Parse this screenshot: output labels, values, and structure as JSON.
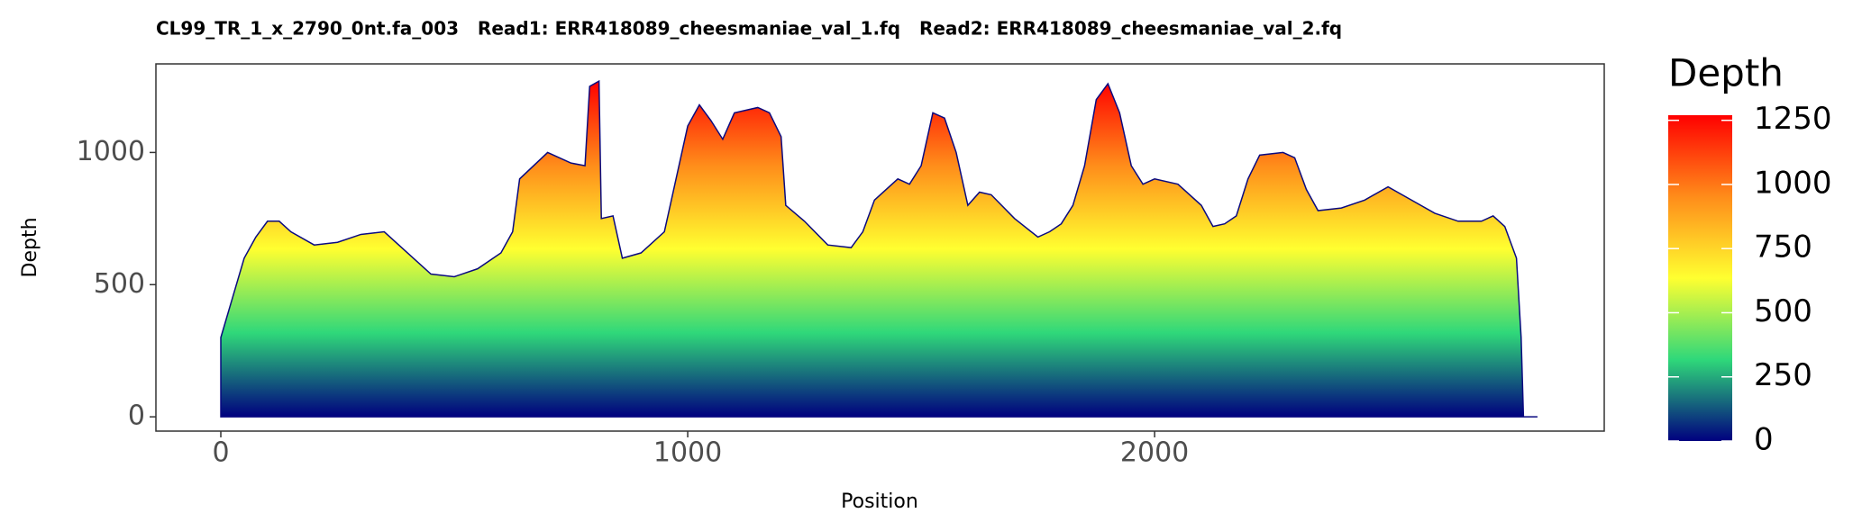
{
  "chart_data": {
    "type": "area",
    "title": "CL99_TR_1_x_2790_0nt.fa_003   Read1: ERR418089_cheesmaniae_val_1.fq   Read2: ERR418089_cheesmaniae_val_2.fq",
    "x_label": "Position",
    "y_label": "Depth",
    "x": [
      0,
      25,
      50,
      75,
      100,
      125,
      150,
      200,
      250,
      300,
      350,
      400,
      450,
      500,
      550,
      600,
      625,
      640,
      700,
      750,
      780,
      790,
      810,
      815,
      840,
      860,
      900,
      950,
      975,
      1000,
      1025,
      1050,
      1075,
      1100,
      1150,
      1175,
      1200,
      1210,
      1250,
      1300,
      1350,
      1375,
      1400,
      1450,
      1475,
      1500,
      1525,
      1550,
      1575,
      1600,
      1625,
      1650,
      1700,
      1750,
      1775,
      1800,
      1825,
      1850,
      1875,
      1900,
      1925,
      1950,
      1975,
      2000,
      2050,
      2100,
      2125,
      2150,
      2175,
      2200,
      2225,
      2275,
      2300,
      2325,
      2350,
      2400,
      2450,
      2500,
      2550,
      2600,
      2650,
      2700,
      2725,
      2750,
      2775,
      2785,
      2790,
      2820
    ],
    "values": [
      300,
      450,
      600,
      680,
      740,
      740,
      700,
      650,
      660,
      690,
      700,
      620,
      540,
      530,
      560,
      620,
      700,
      900,
      1000,
      960,
      950,
      1250,
      1270,
      750,
      760,
      600,
      620,
      700,
      900,
      1100,
      1180,
      1120,
      1050,
      1150,
      1170,
      1150,
      1060,
      800,
      740,
      650,
      640,
      700,
      820,
      900,
      880,
      950,
      1150,
      1130,
      1000,
      800,
      850,
      840,
      750,
      680,
      700,
      730,
      800,
      950,
      1200,
      1260,
      1150,
      950,
      880,
      900,
      880,
      800,
      720,
      730,
      760,
      900,
      990,
      1000,
      980,
      860,
      780,
      790,
      820,
      870,
      820,
      770,
      740,
      740,
      760,
      720,
      600,
      300,
      0,
      0
    ],
    "xlim": [
      -139,
      2963
    ],
    "ylim": [
      -54,
      1335
    ],
    "xticks": [
      0,
      1000,
      2000
    ],
    "yticks": [
      0,
      500,
      1000
    ],
    "grid": false,
    "colorbar": {
      "title": "Depth",
      "lim": [
        0,
        1270
      ],
      "ticks": [
        0,
        250,
        500,
        750,
        1000,
        1250
      ],
      "colors": [
        "#00007f",
        "#2fd87a",
        "#ffff30",
        "#ff8c1a",
        "#ff0000"
      ]
    }
  }
}
